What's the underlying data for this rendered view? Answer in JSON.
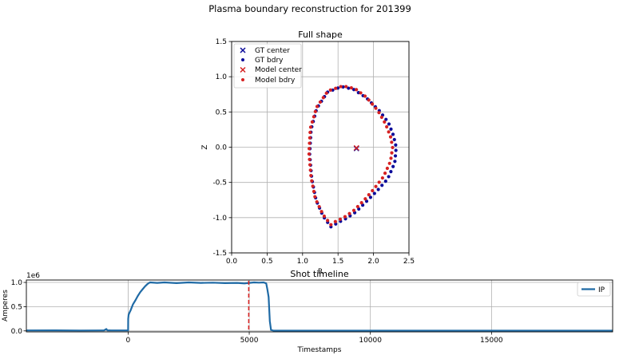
{
  "figure": {
    "suptitle": "Plasma boundary reconstruction for 201399"
  },
  "colors": {
    "gt": "#0b0b9a",
    "model": "#d62222",
    "ip": "#1f6aa5",
    "marker": "#d62222",
    "grid": "#b0b0b0"
  },
  "chart_data": [
    {
      "type": "scatter",
      "title": "Full shape",
      "xlabel": "R",
      "ylabel": "Z",
      "xlim": [
        0.0,
        2.5
      ],
      "ylim": [
        -1.5,
        1.5
      ],
      "xticks": [
        "0.0",
        "0.5",
        "1.0",
        "1.5",
        "2.0",
        "2.5"
      ],
      "yticks": [
        "-1.5",
        "-1.0",
        "-0.5",
        "0.0",
        "0.5",
        "1.0",
        "1.5"
      ],
      "grid": true,
      "legend_position": "top-left",
      "series": [
        {
          "name": "GT center",
          "marker": "x",
          "color": "#0b0b9a",
          "points": [
            [
              1.76,
              -0.02
            ]
          ]
        },
        {
          "name": "GT bdry",
          "marker": "dot",
          "color": "#0b0b9a",
          "anchors": [
            [
              1.4,
              -1.13
            ],
            [
              1.29,
              -0.98
            ],
            [
              1.19,
              -0.75
            ],
            [
              1.13,
              -0.45
            ],
            [
              1.1,
              -0.1
            ],
            [
              1.12,
              0.25
            ],
            [
              1.2,
              0.55
            ],
            [
              1.35,
              0.78
            ],
            [
              1.55,
              0.86
            ],
            [
              1.72,
              0.82
            ],
            [
              1.9,
              0.7
            ],
            [
              2.08,
              0.52
            ],
            [
              2.21,
              0.35
            ],
            [
              2.28,
              0.17
            ],
            [
              2.32,
              0.0
            ],
            [
              2.3,
              -0.22
            ],
            [
              2.2,
              -0.45
            ],
            [
              2.05,
              -0.62
            ],
            [
              1.9,
              -0.77
            ],
            [
              1.75,
              -0.92
            ],
            [
              1.6,
              -1.02
            ],
            [
              1.5,
              -1.07
            ],
            [
              1.4,
              -1.13
            ]
          ],
          "count": 64
        },
        {
          "name": "Model center",
          "marker": "x",
          "color": "#d62222",
          "points": [
            [
              1.76,
              -0.01
            ]
          ]
        },
        {
          "name": "Model bdry",
          "marker": "dot",
          "color": "#d62222",
          "anchors": [
            [
              1.4,
              -1.1
            ],
            [
              1.29,
              -0.96
            ],
            [
              1.18,
              -0.73
            ],
            [
              1.12,
              -0.43
            ],
            [
              1.09,
              -0.08
            ],
            [
              1.11,
              0.27
            ],
            [
              1.2,
              0.57
            ],
            [
              1.36,
              0.8
            ],
            [
              1.57,
              0.87
            ],
            [
              1.74,
              0.83
            ],
            [
              1.9,
              0.71
            ],
            [
              2.06,
              0.52
            ],
            [
              2.17,
              0.33
            ],
            [
              2.24,
              0.15
            ],
            [
              2.27,
              0.0
            ],
            [
              2.24,
              -0.2
            ],
            [
              2.14,
              -0.42
            ],
            [
              2.0,
              -0.6
            ],
            [
              1.87,
              -0.75
            ],
            [
              1.72,
              -0.9
            ],
            [
              1.58,
              -1.0
            ],
            [
              1.47,
              -1.05
            ],
            [
              1.4,
              -1.1
            ]
          ],
          "count": 64
        }
      ]
    },
    {
      "type": "line",
      "title": "Shot timeline",
      "xlabel": "Timestamps",
      "ylabel": "Amperes",
      "y_offset_label": "1e6",
      "xlim": [
        -4200,
        20000
      ],
      "ylim": [
        -0.02,
        1.05
      ],
      "xticks": [
        {
          "v": 0,
          "label": "0"
        },
        {
          "v": 5000,
          "label": "5000"
        },
        {
          "v": 10000,
          "label": "10000"
        },
        {
          "v": 15000,
          "label": "15000"
        }
      ],
      "yticks": [
        {
          "v": 0.0,
          "label": "0.0"
        },
        {
          "v": 0.5,
          "label": "0.5"
        },
        {
          "v": 1.0,
          "label": "1.0"
        }
      ],
      "grid": true,
      "legend_position": "top-right",
      "series": [
        {
          "name": "IP",
          "color": "#1f6aa5",
          "x": [
            -4200,
            -3000,
            -2000,
            -1000,
            -900,
            -850,
            -800,
            -700,
            0,
            5,
            20,
            60,
            100,
            200,
            300,
            400,
            500,
            600,
            700,
            800,
            900,
            1200,
            1500,
            2000,
            2500,
            3000,
            3500,
            4000,
            4500,
            4800,
            5000,
            5200,
            5400,
            5600,
            5700,
            5750,
            5800,
            5850,
            5900,
            6000,
            7000,
            10000,
            15000,
            20000
          ],
          "y": [
            0.01,
            0.012,
            0.008,
            0.01,
            0.04,
            0.01,
            0.012,
            0.01,
            0.01,
            0.25,
            0.33,
            0.38,
            0.42,
            0.55,
            0.63,
            0.72,
            0.8,
            0.86,
            0.92,
            0.97,
            1.0,
            0.99,
            1.0,
            0.985,
            1.0,
            0.99,
            0.995,
            0.985,
            0.99,
            0.98,
            0.99,
            1.0,
            0.995,
            1.0,
            0.98,
            0.85,
            0.7,
            0.2,
            0.02,
            0.005,
            0.004,
            0.004,
            0.004,
            0.004
          ]
        }
      ],
      "marker_line": {
        "x": 4980,
        "style": "dashed",
        "color": "#d62222"
      }
    }
  ]
}
